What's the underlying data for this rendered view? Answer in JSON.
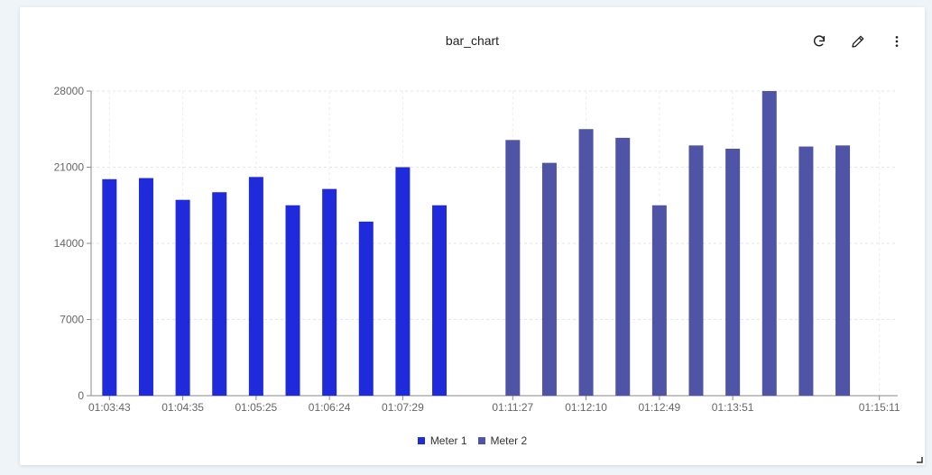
{
  "panel": {
    "title": "bar_chart"
  },
  "toolbar": {
    "refresh_icon": "refresh-icon",
    "edit_icon": "pencil-icon",
    "menu_icon": "more-vertical-icon"
  },
  "chart_data": {
    "type": "bar",
    "categories": [
      "01:03:43",
      "",
      "01:04:35",
      "",
      "01:05:25",
      "",
      "01:06:24",
      "",
      "01:07:29",
      "",
      "",
      "01:11:27",
      "",
      "01:12:10",
      "",
      "01:12:49",
      "",
      "01:13:51",
      "",
      "",
      "",
      "01:15:11"
    ],
    "series": [
      {
        "name": "Meter 1",
        "color": "#1f2bdb",
        "values": [
          19900,
          20000,
          18000,
          18700,
          20100,
          17500,
          19000,
          16000,
          21000,
          17500,
          null,
          null,
          null,
          null,
          null,
          null,
          null,
          null,
          null,
          null,
          null,
          null
        ]
      },
      {
        "name": "Meter 2",
        "color": "#4f54a6",
        "values": [
          null,
          null,
          null,
          null,
          null,
          null,
          null,
          null,
          null,
          null,
          null,
          23500,
          21400,
          24500,
          23700,
          17500,
          23000,
          22700,
          28000,
          22900,
          23000,
          null
        ]
      }
    ],
    "bar_order": [
      {
        "series": 0,
        "value": 19900
      },
      {
        "series": 0,
        "value": 20000
      },
      {
        "series": 0,
        "value": 18000
      },
      {
        "series": 0,
        "value": 18700
      },
      {
        "series": 0,
        "value": 20100
      },
      {
        "series": 0,
        "value": 17500
      },
      {
        "series": 0,
        "value": 19000
      },
      {
        "series": 0,
        "value": 16000
      },
      {
        "series": 0,
        "value": 21000
      },
      {
        "series": 0,
        "value": 17500
      },
      {
        "series": 1,
        "value": 23500
      },
      {
        "series": 1,
        "value": 21400
      },
      {
        "series": 1,
        "value": 24500
      },
      {
        "series": 1,
        "value": 23700
      },
      {
        "series": 1,
        "value": 17500
      },
      {
        "series": 1,
        "value": 23000
      },
      {
        "series": 1,
        "value": 22700
      },
      {
        "series": 1,
        "value": 28000
      },
      {
        "series": 1,
        "value": 22900
      },
      {
        "series": 1,
        "value": 23000
      }
    ],
    "x_tick_labels": [
      "01:03:43",
      "01:04:35",
      "01:05:25",
      "01:06:24",
      "01:07:29",
      "01:11:27",
      "01:12:10",
      "01:12:49",
      "01:13:51",
      "01:15:11"
    ],
    "y_ticks": [
      0,
      7000,
      14000,
      21000,
      28000
    ],
    "ylim": [
      0,
      28000
    ],
    "title": "bar_chart",
    "xlabel": "",
    "ylabel": "",
    "grid": true,
    "legend_position": "bottom-center"
  }
}
